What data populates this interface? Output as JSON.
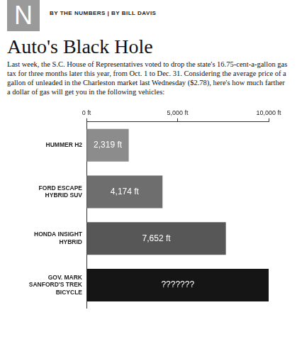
{
  "section": {
    "letter": "N",
    "byline": "BY THE NUMBERS | BY BILL DAVIS"
  },
  "chart_data": {
    "type": "bar",
    "orientation": "horizontal",
    "title": "Auto's Black Hole",
    "subtitle": "Last week, the S.C. House of Representatives voted to drop the state's 16.75-cent-a-gallon gas tax for three months later this year, from Oct. 1 to Dec. 31. Considering the average price of a gallon of unleaded in the Charleston market last Wednesday ($2.78), here's how much farther a dollar of gas will get you in the following vehicles:",
    "categories": [
      "HUMMER H2",
      "FORD ESCAPE HYBRID SUV",
      "HONDA INSIGHT HYBRID",
      "GOV. MARK SANFORD'S TREK BICYCLE"
    ],
    "values": [
      2319,
      4174,
      7652,
      10000
    ],
    "value_labels": [
      "2,319 ft",
      "4,174 ft",
      "7,652 ft",
      "???????"
    ],
    "colors": [
      "#8c8c8c",
      "#6e6e6e",
      "#575757",
      "#151515"
    ],
    "xlim": [
      0,
      10000
    ],
    "xticks": [
      {
        "value": 0,
        "label": "0 ft"
      },
      {
        "value": 5000,
        "label": "5,000 ft"
      },
      {
        "value": 10000,
        "label": "10,000 ft"
      }
    ],
    "grid": false,
    "data_labels": true
  }
}
